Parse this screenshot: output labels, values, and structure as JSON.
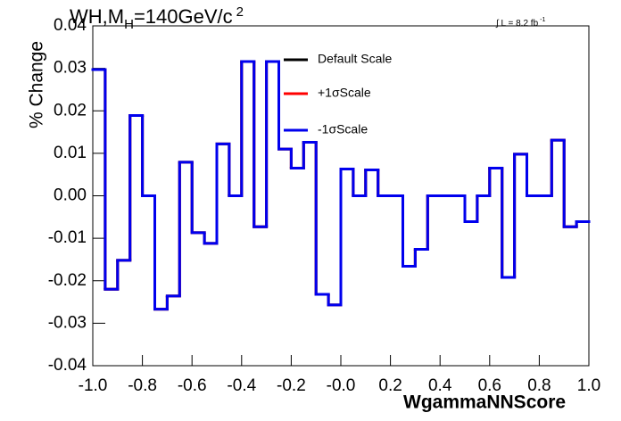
{
  "chart_data": {
    "type": "histogram",
    "title": "WH,M",
    "title_sub": "H",
    "title_rest": "=140GeV/c",
    "title_sup": "2",
    "lumi": "∫ L = 8.2 fb",
    "lumi_sup": "-1",
    "xlabel": "WgammaNNScore",
    "ylabel": "% Change",
    "bins": [
      -1.0,
      -0.95,
      -0.9,
      -0.85,
      -0.8,
      -0.75,
      -0.7,
      -0.65,
      -0.6,
      -0.55,
      -0.5,
      -0.45,
      -0.4,
      -0.35,
      -0.3,
      -0.25,
      -0.2,
      -0.15,
      -0.1,
      -0.05,
      0,
      0.05,
      0.1,
      0.15,
      0.2,
      0.25,
      0.3,
      0.35,
      0.4,
      0.45,
      0.5,
      0.55,
      0.6,
      0.65,
      0.7,
      0.75,
      0.8,
      0.85,
      0.9,
      0.95,
      1.0
    ],
    "series": [
      {
        "name": "Default Scale",
        "color": "#000000",
        "values": [
          0.0297,
          -0.022,
          -0.0152,
          0.0189,
          0,
          -0.0267,
          -0.0236,
          0.0079,
          -0.0087,
          -0.0112,
          0.0122,
          0,
          0.0316,
          -0.0073,
          0.0316,
          0.011,
          0.0065,
          0.0126,
          -0.0232,
          -0.0257,
          0.0063,
          0,
          0.0061,
          0,
          0,
          -0.0166,
          -0.0126,
          0,
          0,
          0,
          -0.0061,
          0,
          0.0065,
          -0.0192,
          0.0098,
          0,
          0,
          0.0131,
          -0.0073,
          -0.0061
        ]
      },
      {
        "name": "+1σScale",
        "color": "#ff0000",
        "values": [
          0.0297,
          -0.022,
          -0.0152,
          0.0189,
          0,
          -0.0267,
          -0.0236,
          0.0079,
          -0.0087,
          -0.0112,
          0.0122,
          0,
          0.0316,
          -0.0073,
          0.0316,
          0.011,
          0.0065,
          0.0126,
          -0.0232,
          -0.0257,
          0.0063,
          0,
          0.0061,
          0,
          0,
          -0.0166,
          -0.0126,
          0,
          0,
          0,
          -0.0061,
          0,
          0.0065,
          -0.0192,
          0.0098,
          0,
          0,
          0.0131,
          -0.0073,
          -0.0061
        ]
      },
      {
        "name": "-1σScale",
        "color": "#0000ee",
        "values": [
          0.0297,
          -0.022,
          -0.0152,
          0.0189,
          0,
          -0.0267,
          -0.0236,
          0.0079,
          -0.0087,
          -0.0112,
          0.0122,
          0,
          0.0316,
          -0.0073,
          0.0316,
          0.011,
          0.0065,
          0.0126,
          -0.0232,
          -0.0257,
          0.0063,
          0,
          0.0061,
          0,
          0,
          -0.0166,
          -0.0126,
          0,
          0,
          0,
          -0.0061,
          0,
          0.0065,
          -0.0192,
          0.0098,
          0,
          0,
          0.0131,
          -0.0073,
          -0.0061
        ]
      }
    ],
    "xlim": [
      -1.0,
      1.0
    ],
    "xticks": [
      {
        "value": -1,
        "label": "-1.0"
      },
      -0.8,
      -0.6,
      -0.4,
      -0.2,
      {
        "value": 0,
        "label": "-0.0"
      },
      0.2,
      0.4,
      0.6,
      0.8,
      {
        "value": 1,
        "label": "1.0"
      }
    ],
    "ylim": [
      -0.04,
      0.04
    ],
    "yticks": [
      -0.04,
      -0.03,
      -0.02,
      -0.01,
      {
        "value": 0,
        "label": "0.00"
      },
      0.01,
      0.02,
      0.03,
      0.04
    ],
    "grid": false,
    "legend": "top"
  }
}
